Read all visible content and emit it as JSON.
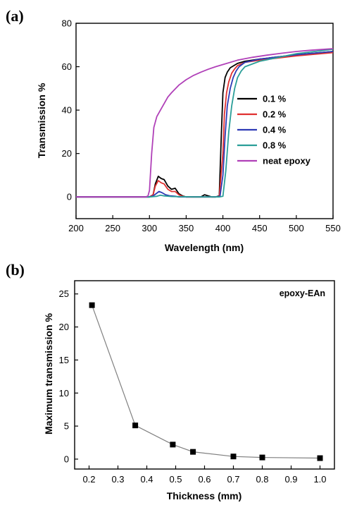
{
  "chart_data": [
    {
      "panel_label": "(a)",
      "type": "line",
      "xlabel": "Wavelength (nm)",
      "ylabel": "Transmission %",
      "xlim": [
        200,
        550
      ],
      "ylim": [
        -10,
        80
      ],
      "xticks": [
        200,
        250,
        300,
        350,
        400,
        450,
        500,
        550
      ],
      "yticks": [
        0,
        20,
        40,
        60,
        80
      ],
      "legend_position": "right",
      "series": [
        {
          "name": "0.1 %",
          "color": "#000000",
          "x": [
            200,
            295,
            300,
            305,
            308,
            312,
            316,
            320,
            325,
            330,
            335,
            340,
            345,
            350,
            360,
            370,
            375,
            380,
            385,
            390,
            395,
            398,
            400,
            403,
            406,
            410,
            415,
            420,
            430,
            450,
            500,
            550
          ],
          "y": [
            0,
            0,
            0,
            1,
            6,
            9.5,
            8.5,
            8,
            5,
            3.5,
            4,
            1.5,
            0.5,
            0,
            0,
            0,
            1,
            0.5,
            0,
            0,
            0.5,
            30,
            48,
            55,
            57.5,
            59.5,
            60.5,
            61.5,
            62.5,
            63.5,
            65.5,
            67
          ]
        },
        {
          "name": "0.2 %",
          "color": "#e03030",
          "x": [
            200,
            295,
            300,
            305,
            308,
            312,
            316,
            320,
            325,
            330,
            335,
            340,
            345,
            350,
            360,
            380,
            390,
            395,
            400,
            402,
            405,
            408,
            412,
            416,
            420,
            430,
            450,
            500,
            550
          ],
          "y": [
            0,
            0,
            0,
            1,
            5,
            7.5,
            6.5,
            6,
            3.5,
            2.5,
            2.5,
            1,
            0.3,
            0,
            0,
            0,
            0,
            0.3,
            20,
            38,
            48,
            53,
            57,
            59,
            60.5,
            62,
            63,
            65,
            66.5
          ]
        },
        {
          "name": "0.4 %",
          "color": "#2e3ab5",
          "x": [
            200,
            300,
            305,
            309,
            313,
            317,
            322,
            328,
            335,
            340,
            360,
            390,
            396,
            400,
            403,
            406,
            410,
            414,
            418,
            422,
            430,
            450,
            500,
            550
          ],
          "y": [
            0,
            0,
            0.5,
            1.5,
            2.5,
            2,
            1,
            0.5,
            0.3,
            0,
            0,
            0,
            0.2,
            10,
            28,
            42,
            50,
            55,
            58,
            60,
            62,
            63.5,
            65.5,
            67
          ]
        },
        {
          "name": "0.8 %",
          "color": "#2a9e98",
          "x": [
            200,
            300,
            310,
            315,
            320,
            330,
            360,
            395,
            400,
            404,
            408,
            412,
            416,
            420,
            425,
            430,
            450,
            500,
            550
          ],
          "y": [
            0,
            0,
            0.3,
            0.8,
            0.5,
            0.2,
            0,
            0,
            0.3,
            12,
            30,
            42,
            50,
            55,
            58,
            60,
            62.5,
            66,
            68
          ]
        },
        {
          "name": "neat epoxy",
          "color": "#b040b8",
          "x": [
            200,
            295,
            298,
            300,
            303,
            306,
            310,
            315,
            320,
            325,
            330,
            340,
            350,
            360,
            370,
            380,
            390,
            400,
            420,
            440,
            460,
            480,
            500,
            520,
            550
          ],
          "y": [
            0,
            0,
            0.5,
            3,
            20,
            32,
            37,
            40,
            43,
            46,
            48,
            51.5,
            54,
            56,
            57.5,
            58.8,
            60,
            61,
            63,
            64.3,
            65.3,
            66.2,
            67,
            67.6,
            68.3
          ]
        }
      ]
    },
    {
      "panel_label": "(b)",
      "type": "line",
      "xlabel": "Thickness (mm)",
      "ylabel": "Maximum transmission %",
      "xlim": [
        0.15,
        1.05
      ],
      "ylim": [
        -1.5,
        27
      ],
      "xticks": [
        "0.2",
        "0.3",
        "0.4",
        "0.5",
        "0.6",
        "0.7",
        "0.8",
        "0.9",
        "1.0"
      ],
      "yticks": [
        "0",
        "5",
        "10",
        "15",
        "20",
        "25"
      ],
      "annotation": "epoxy-EAn",
      "series": [
        {
          "name": "",
          "color": "#000000",
          "line_color": "#808080",
          "marker": "square",
          "x": [
            0.21,
            0.36,
            0.49,
            0.56,
            0.7,
            0.8,
            1.0
          ],
          "y": [
            23.3,
            5.1,
            2.2,
            1.1,
            0.4,
            0.25,
            0.15
          ]
        }
      ]
    }
  ]
}
